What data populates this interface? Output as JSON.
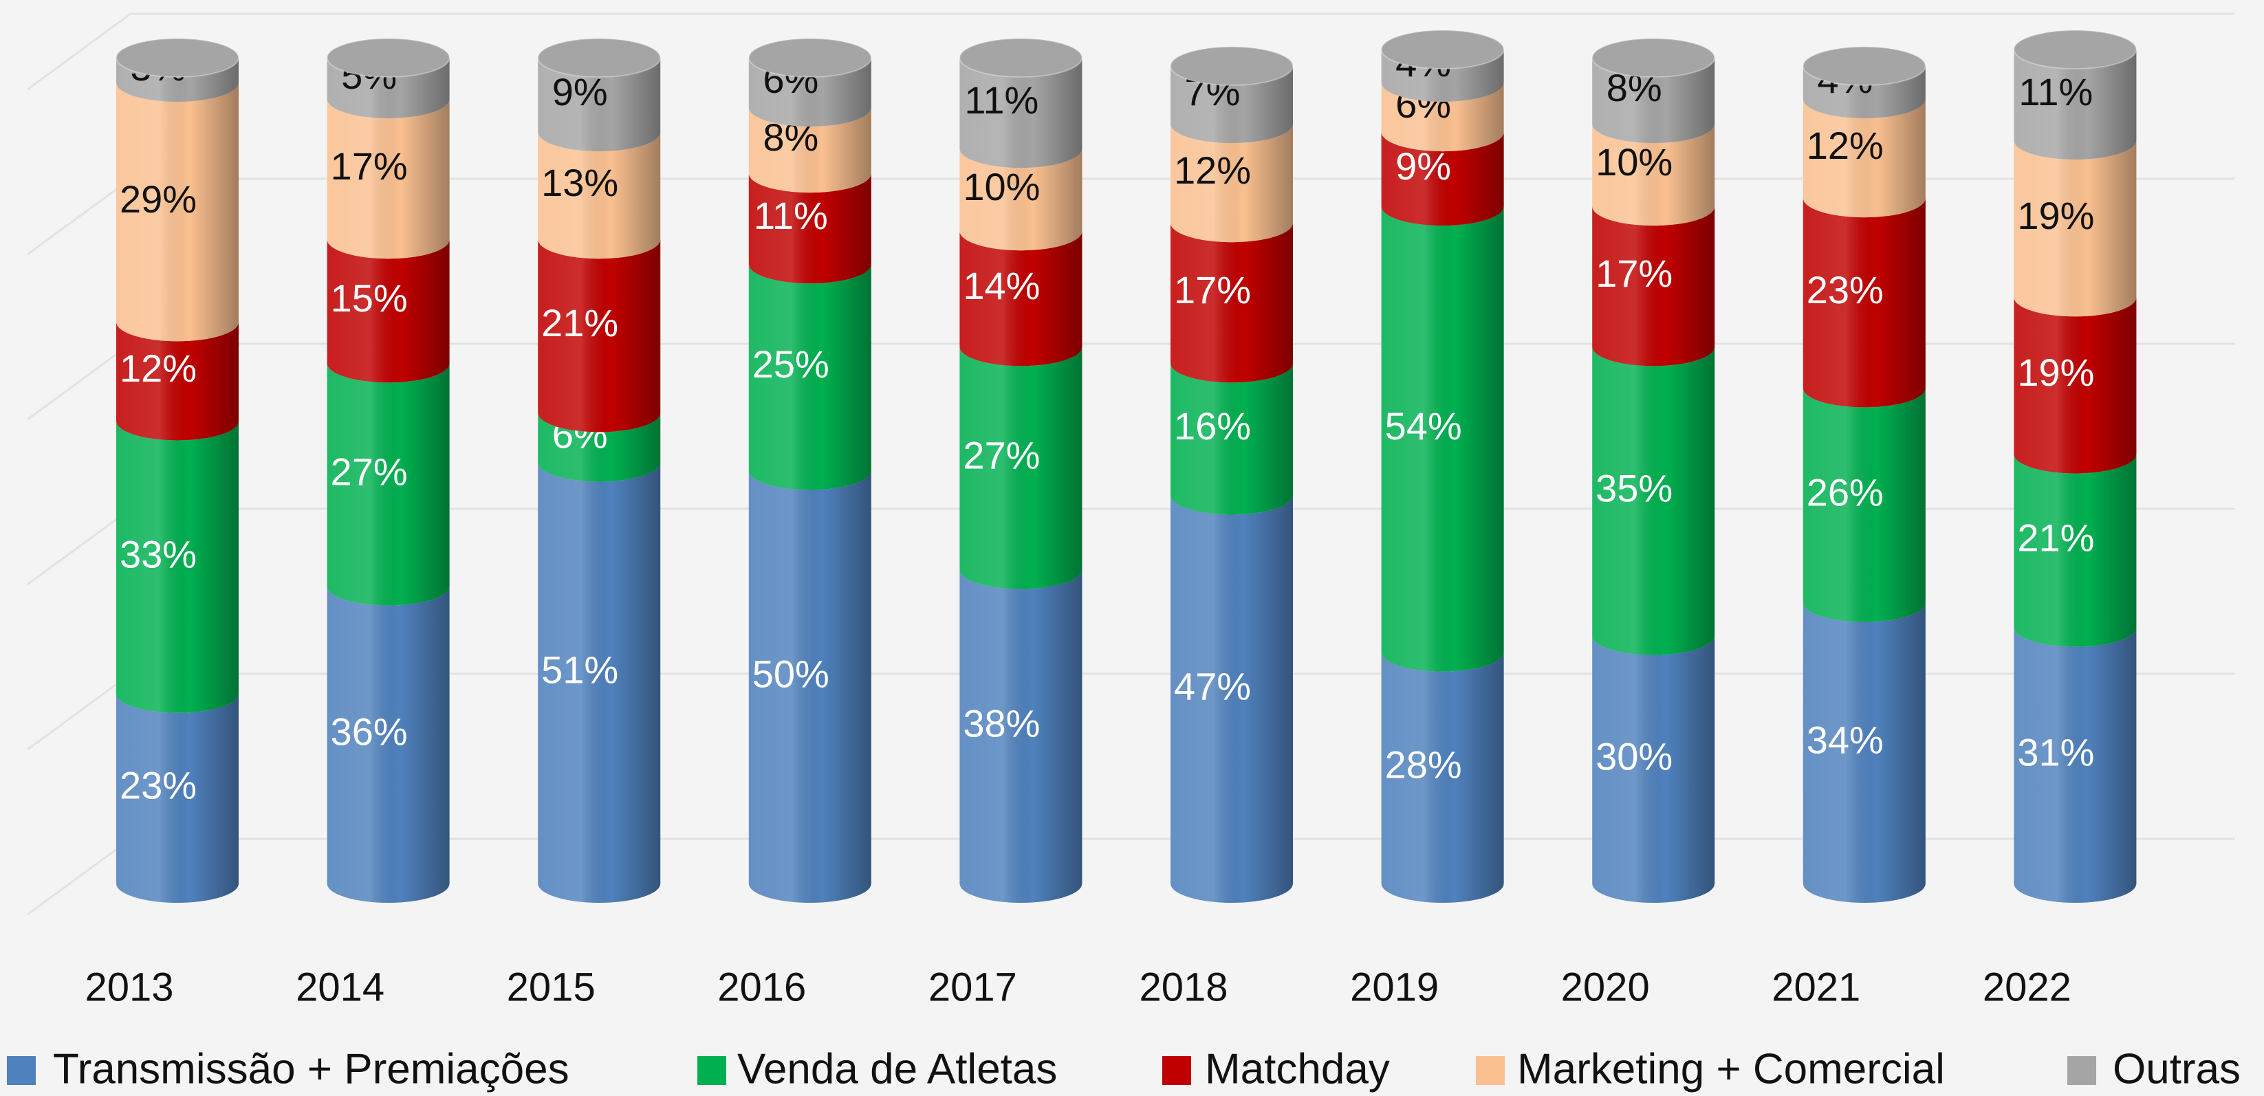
{
  "chart_data": {
    "type": "stacked_bar",
    "categories": [
      "2013",
      "2014",
      "2015",
      "2016",
      "2017",
      "2018",
      "2019",
      "2020",
      "2021",
      "2022"
    ],
    "ylim": [
      0,
      100
    ],
    "legend": "bottom",
    "series": [
      {
        "name": "Transmissão + Premiações",
        "color": "#4f81bd",
        "values": [
          23,
          36,
          51,
          50,
          38,
          47,
          28,
          30,
          34,
          31
        ],
        "value_labels": [
          "23%",
          "36%",
          "51%",
          "50%",
          "38%",
          "47%",
          "28%",
          "30%",
          "34%",
          "31%"
        ]
      },
      {
        "name": "Venda de Atletas",
        "color": "#00b050",
        "values": [
          33,
          27,
          6,
          25,
          27,
          16,
          54,
          35,
          26,
          21
        ],
        "value_labels": [
          "33%",
          "27%",
          "6%",
          "25%",
          "27%",
          "16%",
          "54%",
          "35%",
          "26%",
          "21%"
        ]
      },
      {
        "name": "Matchday",
        "color": "#c00000",
        "values": [
          12,
          15,
          21,
          11,
          14,
          17,
          9,
          17,
          23,
          19
        ],
        "value_labels": [
          "12%",
          "15%",
          "21%",
          "11%",
          "14%",
          "17%",
          "9%",
          "17%",
          "23%",
          "19%"
        ]
      },
      {
        "name": "Marketing + Comercial",
        "color": "#fac090",
        "values": [
          29,
          17,
          13,
          8,
          10,
          12,
          6,
          10,
          12,
          19
        ],
        "value_labels": [
          "29%",
          "17%",
          "13%",
          "8%",
          "10%",
          "12%",
          "6%",
          "10%",
          "12%",
          "19%"
        ]
      },
      {
        "name": "Outras",
        "color": "#a5a5a5",
        "values": [
          3,
          5,
          9,
          6,
          11,
          7,
          4,
          8,
          4,
          11
        ],
        "value_labels": [
          "3%",
          "5%",
          "9%",
          "6%",
          "11%",
          "7%",
          "4%",
          "8%",
          "4%",
          "11%"
        ]
      }
    ]
  }
}
